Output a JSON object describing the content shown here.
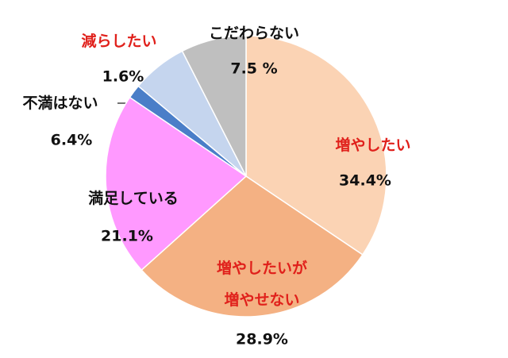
{
  "chart_data": {
    "type": "pie",
    "categories": [
      "増やしたい",
      "増やしたいが\n増やせない",
      "満足している",
      "減らしたい",
      "不満はない",
      "こだわらない"
    ],
    "values": [
      34.4,
      28.9,
      21.1,
      1.6,
      6.4,
      7.5
    ],
    "value_labels": [
      "34.4%",
      "28.9%",
      "21.1%",
      "1.6%",
      "6.4%",
      "7.5 %"
    ],
    "colors": [
      "#FBD3B4",
      "#F4B183",
      "#FF99FF",
      "#4A7EC8",
      "#C5D5EE",
      "#BFBFBF"
    ],
    "label_colors": [
      "#E0201B",
      "#E0201B",
      "#111111",
      "#E0201B",
      "#111111",
      "#111111"
    ]
  }
}
